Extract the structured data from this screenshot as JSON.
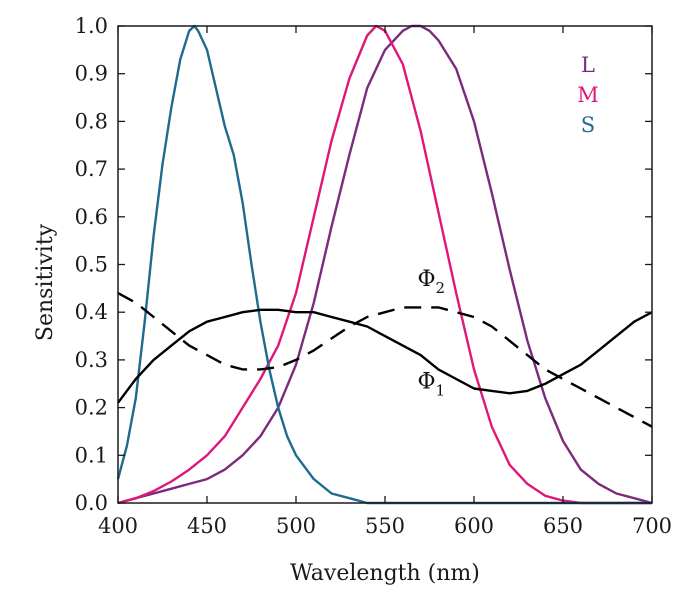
{
  "chart_data": {
    "type": "line",
    "xlabel": "Wavelength (nm)",
    "ylabel": "Sensitivity",
    "xlim": [
      400,
      700
    ],
    "ylim": [
      0,
      1
    ],
    "x_ticks": [
      {
        "value": 400,
        "label": "400"
      },
      {
        "value": 450,
        "label": "450"
      },
      {
        "value": 500,
        "label": "500"
      },
      {
        "value": 550,
        "label": "550"
      },
      {
        "value": 600,
        "label": "600"
      },
      {
        "value": 650,
        "label": "650"
      },
      {
        "value": 700,
        "label": "700"
      }
    ],
    "y_ticks": [
      {
        "value": 0.0,
        "label": "0.0"
      },
      {
        "value": 0.1,
        "label": "0.1"
      },
      {
        "value": 0.2,
        "label": "0.2"
      },
      {
        "value": 0.3,
        "label": "0.3"
      },
      {
        "value": 0.4,
        "label": "0.4"
      },
      {
        "value": 0.5,
        "label": "0.5"
      },
      {
        "value": 0.6,
        "label": "0.6"
      },
      {
        "value": 0.7,
        "label": "0.7"
      },
      {
        "value": 0.8,
        "label": "0.8"
      },
      {
        "value": 0.9,
        "label": "0.9"
      },
      {
        "value": 1.0,
        "label": "1.0"
      }
    ],
    "grid": false,
    "legend": {
      "placement": "top-right",
      "entries": [
        {
          "label": "L",
          "color": "#7b2a7d"
        },
        {
          "label": "M",
          "color": "#e0177a"
        },
        {
          "label": "S",
          "color": "#1f6b8e"
        }
      ]
    },
    "series": [
      {
        "name": "L",
        "color": "#7b2a7d",
        "style": "solid",
        "x": [
          400,
          410,
          420,
          430,
          440,
          450,
          460,
          470,
          480,
          490,
          500,
          510,
          520,
          530,
          540,
          550,
          560,
          565,
          570,
          575,
          580,
          590,
          600,
          610,
          620,
          630,
          640,
          650,
          660,
          670,
          680,
          690,
          700
        ],
        "y": [
          0.0,
          0.01,
          0.02,
          0.03,
          0.04,
          0.05,
          0.07,
          0.1,
          0.14,
          0.2,
          0.29,
          0.42,
          0.58,
          0.73,
          0.87,
          0.95,
          0.99,
          1.0,
          1.0,
          0.99,
          0.97,
          0.91,
          0.8,
          0.65,
          0.49,
          0.34,
          0.22,
          0.13,
          0.07,
          0.04,
          0.02,
          0.01,
          0.0
        ]
      },
      {
        "name": "M",
        "color": "#e0177a",
        "style": "solid",
        "x": [
          400,
          410,
          420,
          430,
          440,
          450,
          460,
          470,
          480,
          490,
          500,
          510,
          520,
          530,
          540,
          545,
          550,
          560,
          570,
          580,
          590,
          600,
          610,
          620,
          630,
          640,
          650,
          660,
          670,
          680,
          690,
          700
        ],
        "y": [
          0.0,
          0.01,
          0.025,
          0.045,
          0.07,
          0.1,
          0.14,
          0.2,
          0.26,
          0.33,
          0.44,
          0.6,
          0.76,
          0.89,
          0.98,
          1.0,
          0.99,
          0.92,
          0.78,
          0.61,
          0.44,
          0.28,
          0.16,
          0.08,
          0.04,
          0.015,
          0.005,
          0.0,
          0.0,
          0.0,
          0.0,
          0.0
        ]
      },
      {
        "name": "S",
        "color": "#1f6b8e",
        "style": "solid",
        "x": [
          400,
          405,
          410,
          415,
          420,
          425,
          430,
          435,
          440,
          443,
          445,
          450,
          455,
          460,
          465,
          470,
          475,
          480,
          485,
          490,
          495,
          500,
          510,
          520,
          530,
          540,
          550,
          560,
          600,
          650,
          700
        ],
        "y": [
          0.05,
          0.12,
          0.22,
          0.38,
          0.56,
          0.71,
          0.83,
          0.93,
          0.99,
          1.0,
          0.99,
          0.95,
          0.87,
          0.79,
          0.73,
          0.63,
          0.5,
          0.38,
          0.28,
          0.2,
          0.14,
          0.1,
          0.05,
          0.02,
          0.01,
          0.0,
          0.0,
          0.0,
          0.0,
          0.0,
          0.0
        ]
      },
      {
        "name": "Φ1",
        "color": "#000000",
        "style": "solid",
        "x": [
          400,
          410,
          420,
          430,
          440,
          450,
          460,
          470,
          480,
          490,
          500,
          510,
          520,
          530,
          540,
          550,
          560,
          570,
          580,
          590,
          600,
          610,
          620,
          630,
          640,
          650,
          660,
          670,
          680,
          690,
          700
        ],
        "y": [
          0.21,
          0.26,
          0.3,
          0.33,
          0.36,
          0.38,
          0.39,
          0.4,
          0.405,
          0.405,
          0.4,
          0.4,
          0.39,
          0.38,
          0.37,
          0.35,
          0.33,
          0.31,
          0.28,
          0.26,
          0.24,
          0.235,
          0.23,
          0.235,
          0.25,
          0.27,
          0.29,
          0.32,
          0.35,
          0.38,
          0.4
        ]
      },
      {
        "name": "Φ2",
        "color": "#000000",
        "style": "dashed",
        "x": [
          400,
          410,
          420,
          430,
          440,
          450,
          460,
          470,
          480,
          490,
          500,
          510,
          520,
          530,
          540,
          550,
          560,
          570,
          580,
          590,
          600,
          610,
          620,
          630,
          640,
          650,
          660,
          670,
          680,
          690,
          700
        ],
        "y": [
          0.44,
          0.42,
          0.39,
          0.36,
          0.33,
          0.31,
          0.29,
          0.28,
          0.28,
          0.285,
          0.3,
          0.32,
          0.345,
          0.37,
          0.39,
          0.4,
          0.41,
          0.41,
          0.41,
          0.4,
          0.39,
          0.37,
          0.34,
          0.31,
          0.28,
          0.26,
          0.24,
          0.22,
          0.2,
          0.18,
          0.16
        ]
      }
    ],
    "annotations": [
      {
        "base": "Φ",
        "sub": "2",
        "x": 576,
        "y": 0.455
      },
      {
        "base": "Φ",
        "sub": "1",
        "x": 576,
        "y": 0.24
      }
    ]
  }
}
